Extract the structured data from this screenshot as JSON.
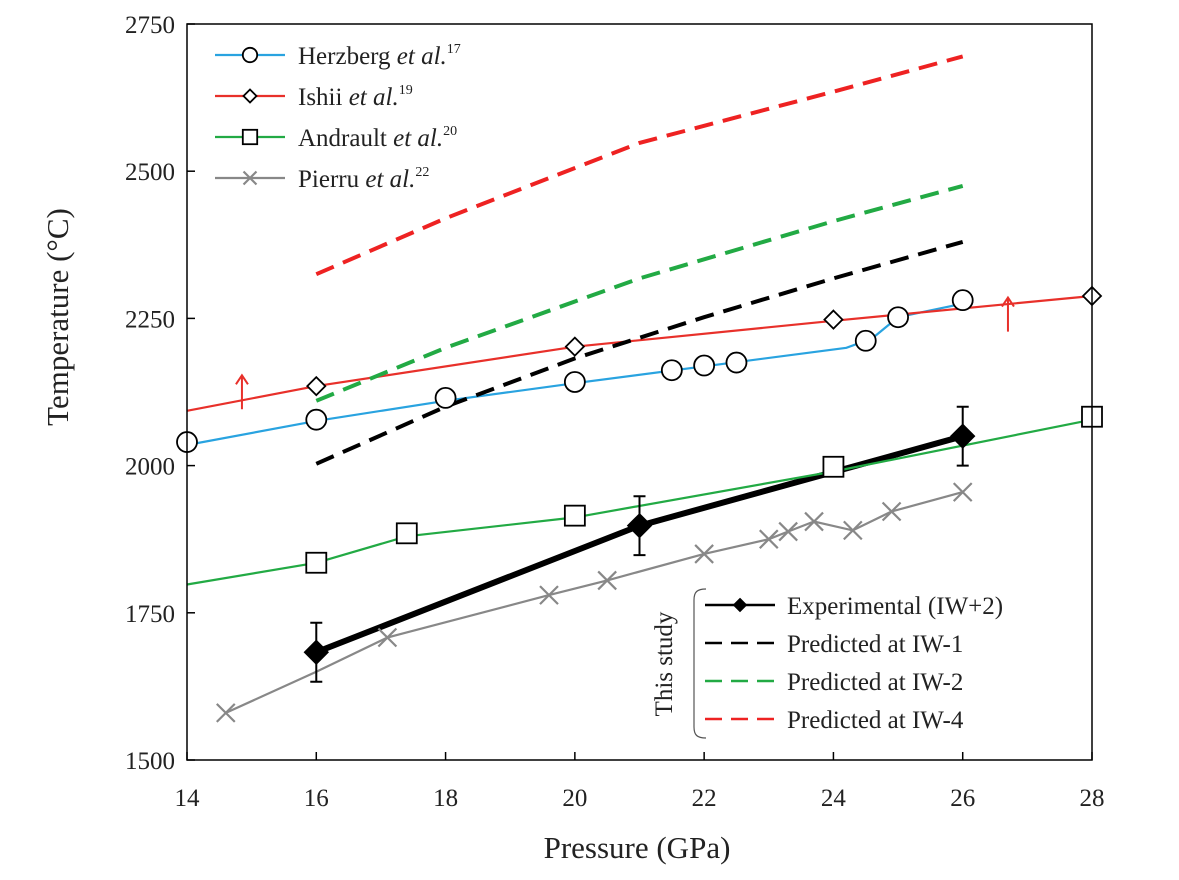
{
  "chart_data": {
    "type": "line",
    "xlabel": "Pressure (GPa)",
    "ylabel": "Temperature (°C)",
    "xlim": [
      14,
      28
    ],
    "ylim": [
      1500,
      2750
    ],
    "xticks": [
      "14",
      "16",
      "18",
      "20",
      "22",
      "24",
      "26",
      "28"
    ],
    "yticks": [
      "1500",
      "1750",
      "2000",
      "2250",
      "2500",
      "2750"
    ],
    "grid": false,
    "legend_placement": "top-left",
    "study_bracket_label": "This study",
    "colors": {
      "herzberg": "#29a3e0",
      "ishii": "#e8302a",
      "andrault": "#22aa44",
      "pierru": "#888888",
      "experimental": "#000000",
      "pred_iw1": "#000000",
      "pred_iw2": "#22aa44",
      "pred_iw4": "#ee2222"
    },
    "series": [
      {
        "name": "Herzberg et al.",
        "ref": "17",
        "legend_prefix": "Herzberg ",
        "legend_italic": "et al.",
        "marker": "circle",
        "line": [
          [
            14,
            2035
          ],
          [
            16,
            2076
          ],
          [
            18,
            2110
          ],
          [
            20,
            2140
          ],
          [
            24.2,
            2200
          ],
          [
            24.6,
            2216
          ],
          [
            25,
            2252
          ],
          [
            26,
            2275
          ]
        ],
        "points": [
          [
            14,
            2040
          ],
          [
            16,
            2078
          ],
          [
            18,
            2115
          ],
          [
            20,
            2142
          ],
          [
            21.5,
            2162
          ],
          [
            22,
            2170
          ],
          [
            22.5,
            2175
          ],
          [
            24.5,
            2212
          ],
          [
            25,
            2252
          ],
          [
            26,
            2281
          ]
        ]
      },
      {
        "name": "Ishii et al.",
        "ref": "19",
        "legend_prefix": "Ishii ",
        "legend_italic": "et al.",
        "marker": "diamond",
        "line": [
          [
            14,
            2093
          ],
          [
            16,
            2135
          ],
          [
            20,
            2202
          ],
          [
            24,
            2246
          ],
          [
            28,
            2288
          ]
        ],
        "points": [
          [
            16,
            2135
          ],
          [
            20,
            2202
          ],
          [
            24,
            2248
          ],
          [
            28,
            2288
          ]
        ],
        "arrows": [
          [
            14.85,
            2133
          ],
          [
            26.7,
            2265
          ]
        ]
      },
      {
        "name": "Andrault et al.",
        "ref": "20",
        "legend_prefix": "Andrault ",
        "legend_italic": "et al.",
        "marker": "square",
        "line": [
          [
            14,
            1798
          ],
          [
            16,
            1835
          ],
          [
            17.4,
            1880
          ],
          [
            20,
            1912
          ],
          [
            24,
            1990
          ],
          [
            28,
            2078
          ]
        ],
        "points": [
          [
            16,
            1835
          ],
          [
            17.4,
            1885
          ],
          [
            20,
            1915
          ],
          [
            24,
            1998
          ],
          [
            28,
            2083
          ]
        ]
      },
      {
        "name": "Pierru et al.",
        "ref": "22",
        "legend_prefix": "Pierru ",
        "legend_italic": "et al.",
        "marker": "x",
        "line": [
          [
            14.6,
            1580
          ],
          [
            16,
            1650
          ],
          [
            17.1,
            1708
          ],
          [
            19.6,
            1780
          ],
          [
            20.5,
            1805
          ],
          [
            22,
            1850
          ],
          [
            23,
            1875
          ],
          [
            23.3,
            1888
          ],
          [
            23.7,
            1905
          ],
          [
            24.3,
            1890
          ],
          [
            24.9,
            1922
          ],
          [
            26,
            1955
          ]
        ],
        "points": [
          [
            14.6,
            1580
          ],
          [
            17.1,
            1708
          ],
          [
            19.6,
            1780
          ],
          [
            20.5,
            1805
          ],
          [
            22,
            1850
          ],
          [
            23,
            1875
          ],
          [
            23.3,
            1888
          ],
          [
            23.7,
            1905
          ],
          [
            24.3,
            1890
          ],
          [
            24.9,
            1922
          ],
          [
            26,
            1955
          ]
        ]
      },
      {
        "name": "Experimental (IW+2)",
        "marker": "filled-diamond",
        "line": [
          [
            16,
            1683
          ],
          [
            21,
            1898
          ],
          [
            26,
            2050
          ]
        ],
        "points": [
          [
            16,
            1683
          ],
          [
            21,
            1898
          ],
          [
            26,
            2050
          ]
        ],
        "error": [
          50,
          50,
          50
        ]
      },
      {
        "name": "Predicted at IW-1",
        "style": "dashed",
        "line": [
          [
            16,
            2003
          ],
          [
            18,
            2100
          ],
          [
            20,
            2182
          ],
          [
            22,
            2252
          ],
          [
            24,
            2318
          ],
          [
            26,
            2380
          ]
        ]
      },
      {
        "name": "Predicted at IW-2",
        "style": "dashed",
        "line": [
          [
            16,
            2110
          ],
          [
            18,
            2200
          ],
          [
            21,
            2318
          ],
          [
            24,
            2415
          ],
          [
            26,
            2475
          ]
        ]
      },
      {
        "name": "Predicted at IW-4",
        "style": "dashed",
        "line": [
          [
            16,
            2325
          ],
          [
            18,
            2420
          ],
          [
            21,
            2548
          ],
          [
            24,
            2635
          ],
          [
            26,
            2695
          ]
        ]
      }
    ]
  }
}
